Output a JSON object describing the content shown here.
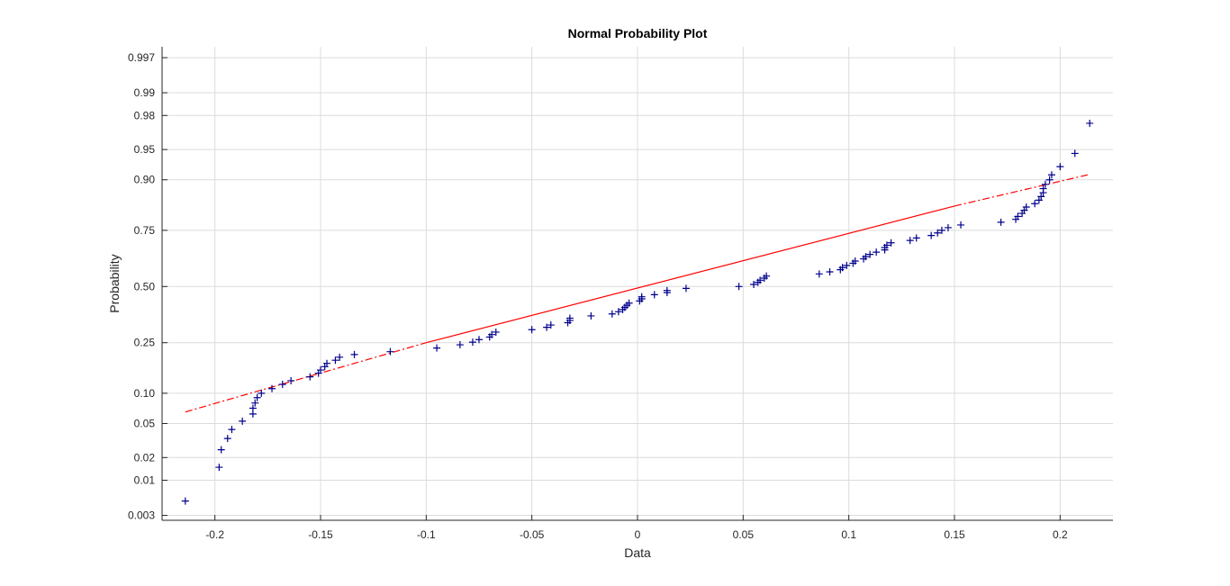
{
  "chart_data": {
    "type": "scatter",
    "title": "Normal Probability Plot",
    "xlabel": "Data",
    "ylabel": "Probability",
    "xlim": [
      -0.225,
      0.225
    ],
    "x_ticks": [
      -0.2,
      -0.15,
      -0.1,
      -0.05,
      0,
      0.05,
      0.1,
      0.15,
      0.2
    ],
    "x_tick_labels": [
      "-0.2",
      "-0.15",
      "-0.1",
      "-0.05",
      "0",
      "0.05",
      "0.1",
      "0.15",
      "0.2"
    ],
    "y_scale": "normal-probability",
    "ylim": [
      0.0025,
      0.998
    ],
    "y_ticks": [
      0.003,
      0.01,
      0.02,
      0.05,
      0.1,
      0.25,
      0.5,
      0.75,
      0.9,
      0.95,
      0.98,
      0.99,
      0.997
    ],
    "y_tick_labels": [
      "0.003",
      "0.01",
      "0.02",
      "0.05",
      "0.10",
      "0.25",
      "0.50",
      "0.75",
      "0.90",
      "0.95",
      "0.98",
      "0.99",
      "0.997"
    ],
    "grid": true,
    "colors": {
      "points": "#00008b",
      "fit_line": "#ff0000",
      "axis": "#262626",
      "grid": "#dcdcdc"
    },
    "fit_line": {
      "solid": {
        "x": [
          -0.1,
          0.15
        ],
        "y": [
          0.25,
          0.833
        ]
      },
      "dashed_left": {
        "x": [
          -0.214,
          -0.1
        ],
        "y": [
          0.066,
          0.25
        ]
      },
      "dashed_right": {
        "x": [
          0.15,
          0.213
        ],
        "y": [
          0.833,
          0.91
        ]
      }
    },
    "series": [
      {
        "marker": "+",
        "points": [
          [
            -0.214,
            0.005
          ],
          [
            -0.198,
            0.015
          ],
          [
            -0.197,
            0.025
          ],
          [
            -0.194,
            0.034
          ],
          [
            -0.192,
            0.043
          ],
          [
            -0.187,
            0.053
          ],
          [
            -0.182,
            0.063
          ],
          [
            -0.182,
            0.072
          ],
          [
            -0.181,
            0.081
          ],
          [
            -0.18,
            0.091
          ],
          [
            -0.178,
            0.1
          ],
          [
            -0.173,
            0.11
          ],
          [
            -0.168,
            0.12
          ],
          [
            -0.164,
            0.129
          ],
          [
            -0.155,
            0.139
          ],
          [
            -0.151,
            0.149
          ],
          [
            -0.15,
            0.158
          ],
          [
            -0.148,
            0.168
          ],
          [
            -0.147,
            0.178
          ],
          [
            -0.143,
            0.188
          ],
          [
            -0.141,
            0.198
          ],
          [
            -0.134,
            0.207
          ],
          [
            -0.117,
            0.217
          ],
          [
            -0.095,
            0.23
          ],
          [
            -0.084,
            0.242
          ],
          [
            -0.078,
            0.252
          ],
          [
            -0.075,
            0.262
          ],
          [
            -0.07,
            0.272
          ],
          [
            -0.069,
            0.282
          ],
          [
            -0.067,
            0.292
          ],
          [
            -0.05,
            0.302
          ],
          [
            -0.043,
            0.312
          ],
          [
            -0.041,
            0.322
          ],
          [
            -0.033,
            0.332
          ],
          [
            -0.032,
            0.342
          ],
          [
            -0.032,
            0.352
          ],
          [
            -0.022,
            0.362
          ],
          [
            -0.012,
            0.371
          ],
          [
            -0.009,
            0.381
          ],
          [
            -0.007,
            0.391
          ],
          [
            -0.006,
            0.401
          ],
          [
            -0.005,
            0.411
          ],
          [
            -0.004,
            0.421
          ],
          [
            0.001,
            0.431
          ],
          [
            0.002,
            0.441
          ],
          [
            0.002,
            0.451
          ],
          [
            0.008,
            0.461
          ],
          [
            0.014,
            0.471
          ],
          [
            0.014,
            0.481
          ],
          [
            0.023,
            0.491
          ],
          [
            0.048,
            0.5
          ],
          [
            0.055,
            0.51
          ],
          [
            0.057,
            0.52
          ],
          [
            0.058,
            0.53
          ],
          [
            0.06,
            0.54
          ],
          [
            0.061,
            0.55
          ],
          [
            0.086,
            0.56
          ],
          [
            0.091,
            0.57
          ],
          [
            0.096,
            0.58
          ],
          [
            0.097,
            0.59
          ],
          [
            0.099,
            0.6
          ],
          [
            0.102,
            0.61
          ],
          [
            0.103,
            0.62
          ],
          [
            0.107,
            0.63
          ],
          [
            0.108,
            0.64
          ],
          [
            0.11,
            0.65
          ],
          [
            0.113,
            0.66
          ],
          [
            0.117,
            0.67
          ],
          [
            0.117,
            0.68
          ],
          [
            0.118,
            0.69
          ],
          [
            0.12,
            0.7
          ],
          [
            0.129,
            0.71
          ],
          [
            0.132,
            0.72
          ],
          [
            0.139,
            0.73
          ],
          [
            0.142,
            0.74
          ],
          [
            0.144,
            0.75
          ],
          [
            0.147,
            0.76
          ],
          [
            0.153,
            0.77
          ],
          [
            0.172,
            0.78
          ],
          [
            0.179,
            0.79
          ],
          [
            0.18,
            0.8
          ],
          [
            0.182,
            0.81
          ],
          [
            0.183,
            0.82
          ],
          [
            0.184,
            0.83
          ],
          [
            0.188,
            0.84
          ],
          [
            0.19,
            0.85
          ],
          [
            0.191,
            0.86
          ],
          [
            0.192,
            0.87
          ],
          [
            0.192,
            0.88
          ],
          [
            0.193,
            0.89
          ],
          [
            0.195,
            0.9
          ],
          [
            0.196,
            0.91
          ],
          [
            0.2,
            0.925
          ],
          [
            0.207,
            0.945
          ],
          [
            0.214,
            0.975
          ]
        ]
      }
    ]
  }
}
